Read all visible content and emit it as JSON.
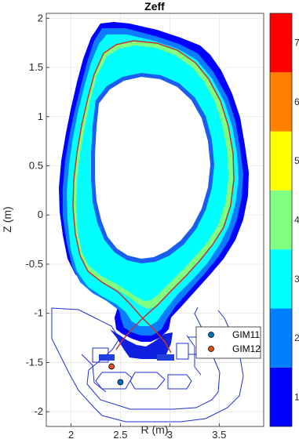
{
  "chart_data": {
    "type": "heatmap",
    "title": "Zeff",
    "xlabel": "R (m)",
    "ylabel": "Z (m)",
    "xlim": [
      1.75,
      3.95
    ],
    "ylim": [
      -2.15,
      2.05
    ],
    "x_ticks": [
      2,
      2.5,
      3,
      3.5
    ],
    "x_tick_labels": [
      "2",
      "2.5",
      "3",
      "3.5"
    ],
    "y_ticks": [
      2,
      1.5,
      1,
      0.5,
      0,
      -0.5,
      -1,
      -1.5,
      -2
    ],
    "y_tick_labels": [
      "2",
      "1.5",
      "1",
      "0.5",
      "0",
      "-0.5",
      "-1",
      "-1.5",
      "-2"
    ],
    "grid": true,
    "colorbar": {
      "range": [
        1,
        8
      ],
      "levels": [
        {
          "from": 1,
          "to": 2,
          "color": "#0000FF"
        },
        {
          "from": 2,
          "to": 3,
          "color": "#0080FF"
        },
        {
          "from": 3,
          "to": 4,
          "color": "#00FFFF"
        },
        {
          "from": 4,
          "to": 5,
          "color": "#80FF80"
        },
        {
          "from": 5,
          "to": 6,
          "color": "#FFFF00"
        },
        {
          "from": 6,
          "to": 7,
          "color": "#FF8000"
        },
        {
          "from": 7,
          "to": 8,
          "color": "#FF0000"
        }
      ],
      "tick_labels": [
        "1",
        "2",
        "3",
        "4",
        "5",
        "6",
        "7"
      ]
    },
    "series": [
      {
        "name": "GIM11",
        "type": "scatter",
        "color": "#0072BD",
        "points": [
          [
            2.5,
            -1.7
          ]
        ]
      },
      {
        "name": "GIM12",
        "type": "scatter",
        "color": "#D95319",
        "points": [
          [
            2.41,
            -1.54
          ]
        ]
      }
    ],
    "legend": {
      "placement": "bottom-right",
      "entries": [
        "GIM11",
        "GIM12"
      ]
    }
  }
}
